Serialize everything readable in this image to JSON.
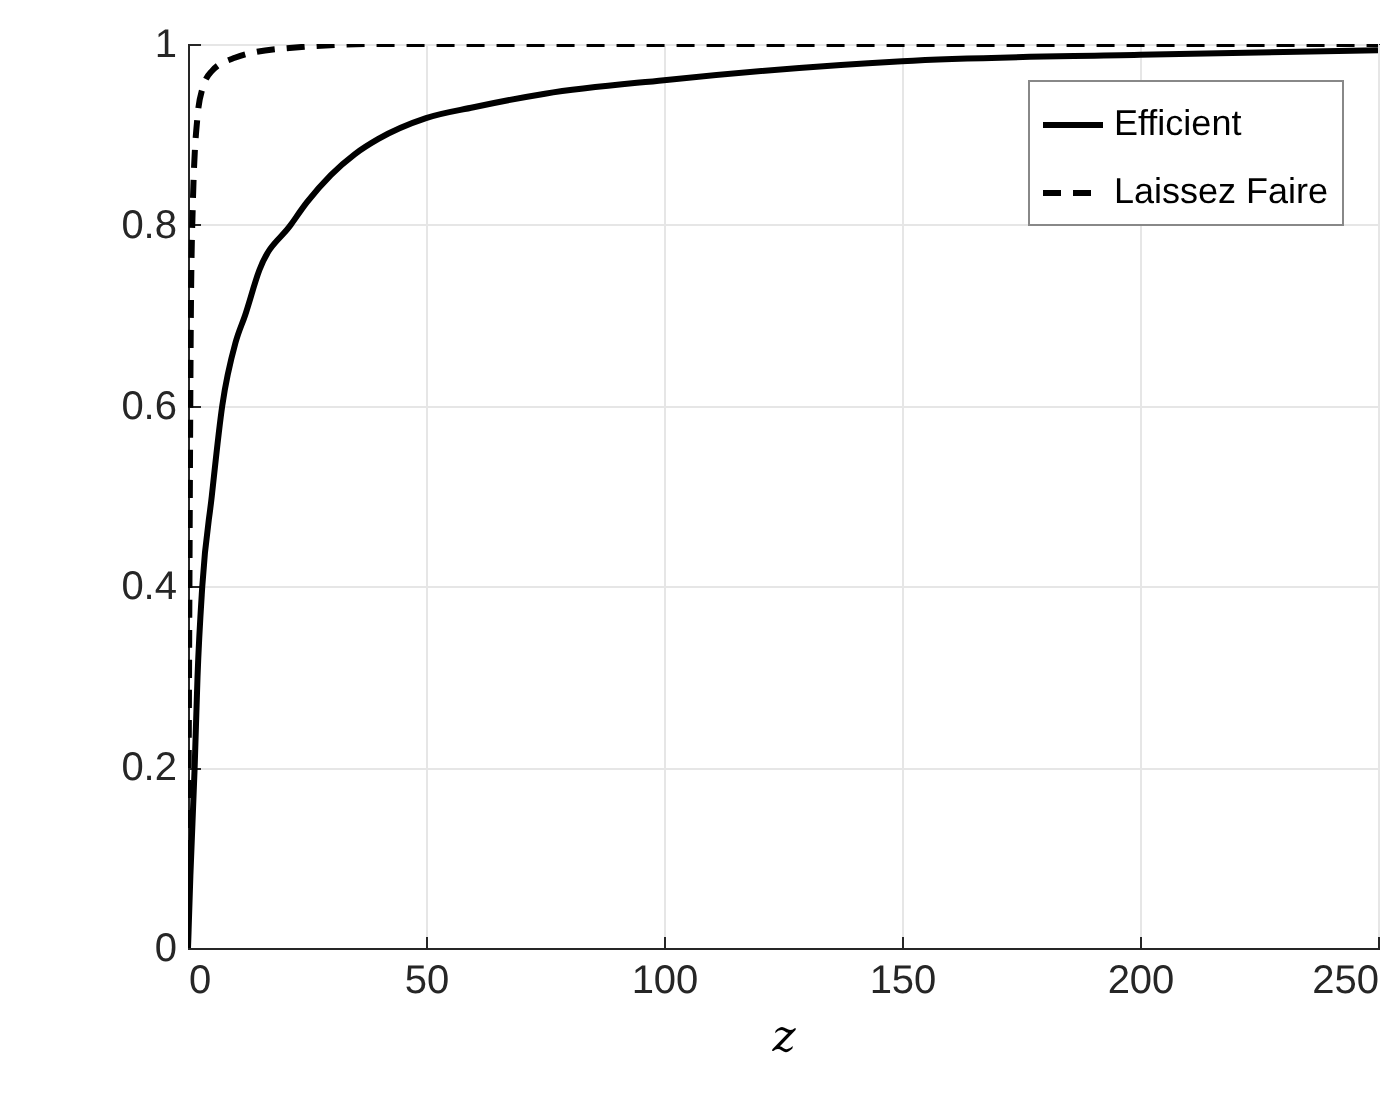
{
  "chart_data": {
    "type": "line",
    "xlabel": "z",
    "xlim": [
      0,
      250
    ],
    "ylim": [
      0,
      1
    ],
    "xticks": [
      0,
      50,
      100,
      150,
      200,
      250
    ],
    "yticks": [
      0,
      0.2,
      0.4,
      0.6,
      0.8,
      1
    ],
    "grid": true,
    "legend": "top right",
    "series": [
      {
        "name": "Efficient",
        "color": "#000000",
        "line_style": "solid",
        "x": [
          0,
          0.5,
          1.4,
          2,
          3,
          5,
          7.2,
          10,
          12,
          15,
          21.6,
          25,
          30,
          35,
          40,
          50,
          60,
          75,
          100,
          150,
          200,
          250
        ],
        "values": [
          0,
          0.08,
          0.2,
          0.3,
          0.4,
          0.5,
          0.6,
          0.67,
          0.7,
          0.75,
          0.8,
          0.825,
          0.855,
          0.878,
          0.895,
          0.918,
          0.93,
          0.945,
          0.96,
          0.981,
          0.988,
          0.993
        ]
      },
      {
        "name": "Laissez Faire",
        "color": "#000000",
        "line_style": "dashed",
        "x": [
          0,
          0.3,
          0.6,
          1,
          2,
          3,
          5,
          10,
          20,
          40,
          250
        ],
        "values": [
          0,
          0.4,
          0.7,
          0.82,
          0.92,
          0.95,
          0.97,
          0.985,
          0.995,
          1,
          1
        ]
      }
    ]
  }
}
